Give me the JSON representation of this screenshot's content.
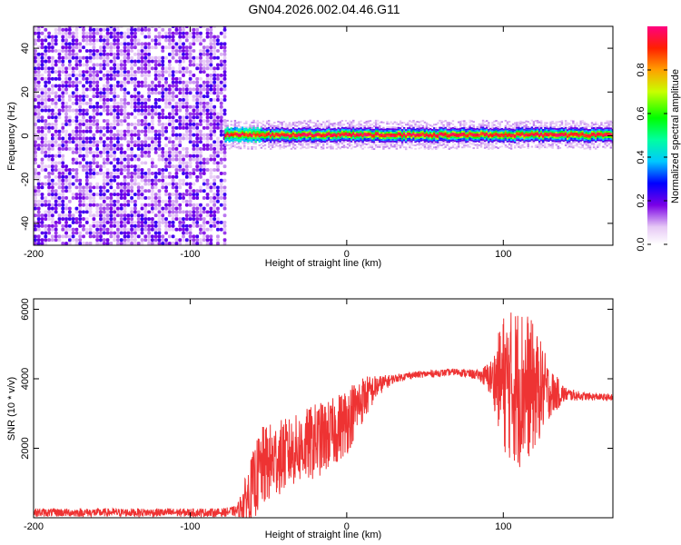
{
  "title": "GN04.2026.002.04.46.G11",
  "chart_data": [
    {
      "type": "heatmap",
      "xlabel": "Height of straight line (km)",
      "ylabel": "Frequency (Hz)",
      "xlim": [
        -200,
        170
      ],
      "ylim": [
        -50,
        50
      ],
      "xticks": [
        -200,
        -100,
        0,
        100
      ],
      "yticks": [
        -40,
        -20,
        0,
        20,
        40
      ],
      "colorbar": {
        "label": "Normalized spectral amplitude",
        "range": [
          0,
          1
        ],
        "ticks": [
          0.0,
          0.2,
          0.4,
          0.6,
          0.8
        ],
        "tick_labels": [
          "0.0",
          "0.2",
          "0.4",
          "0.6",
          "0.8"
        ]
      },
      "regions": [
        {
          "x_range": [
            -200,
            -78
          ],
          "freq_range": [
            -50,
            50
          ],
          "description": "broadband noise, amplitude 0.0-0.1"
        },
        {
          "x_range": [
            -78,
            170
          ],
          "freq_center": 0,
          "description": "narrow signal band near 0 Hz, amplitude up to 1.0"
        }
      ]
    },
    {
      "type": "line",
      "xlabel": "Height of straight line (km)",
      "ylabel": "SNR (10 * v/v)",
      "xlim": [
        -200,
        170
      ],
      "ylim": [
        0,
        6300
      ],
      "xticks": [
        -200,
        -100,
        0,
        100
      ],
      "yticks": [
        2000,
        4000,
        6000
      ],
      "series_color": "#ee3333",
      "series": [
        {
          "x": [
            -200,
            -160,
            -120,
            -80,
            -70,
            -62,
            -55,
            -45,
            -35,
            -20,
            -10,
            0,
            10,
            20,
            30,
            40,
            55,
            70,
            85,
            93,
            100,
            105,
            110,
            115,
            120,
            125,
            130,
            140,
            150,
            160,
            170
          ],
          "y": [
            150,
            150,
            150,
            150,
            200,
            700,
            1400,
            1700,
            1900,
            2200,
            2400,
            2800,
            3400,
            3800,
            4000,
            4100,
            4150,
            4200,
            4100,
            4000,
            3900,
            3800,
            3800,
            3800,
            3700,
            3700,
            3600,
            3550,
            3500,
            3480,
            3450
          ],
          "noise_amplitude": [
            120,
            120,
            120,
            120,
            150,
            900,
            1200,
            1100,
            1000,
            1100,
            1000,
            1000,
            700,
            300,
            120,
            100,
            100,
            100,
            150,
            600,
            2000,
            2200,
            2400,
            2200,
            1800,
            1300,
            700,
            200,
            120,
            100,
            100
          ]
        }
      ]
    }
  ]
}
